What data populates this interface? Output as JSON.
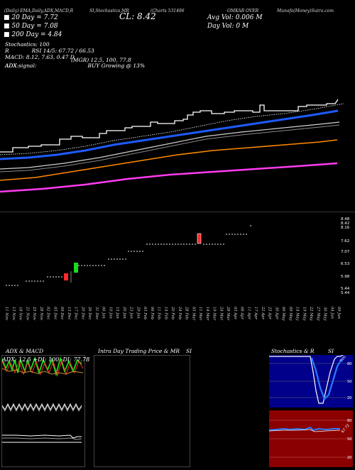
{
  "header": {
    "line1_left": "(Daily) EMA,Daily,ADX,MACD,R",
    "line1_mid": "SI,Stochastics,MR",
    "line1_right": "(Charts 531496",
    "line1_name": "OMKAR OVER",
    "line1_far": "Munafa(Money)Sutra.com"
  },
  "legend": {
    "ema20": "20 Day = 7.72",
    "ema50": "50 Day = 7.08",
    "ema200": "200 Day = 4.84",
    "stoch": "Stochastics: 100",
    "rsi": "RSI 14/5: 67.72 / 66.53",
    "macd": "MACD: 8.12, 7.63, 0.47 D",
    "adx": "ADX:",
    "adx_val": "(MGR) 12.5, 100, 77.8",
    "adx_signal": "ADX  signal:",
    "adx_signal_val": "BUY Growing @ 13%"
  },
  "stats": {
    "close": "CL: 8.42",
    "avg_vol": "Avg Vol: 0.006  M",
    "day_vol": "Day Vol: 0   M"
  },
  "colors": {
    "ema20": "#1e5bff",
    "ema200": "#ff8a00",
    "pink": "#ff3cf0",
    "up": "#16e016",
    "down": "#ff2a2a",
    "rsi_bg": "#8b0000",
    "stoch_bg": "#00008b"
  },
  "price_axis": {
    "labels": [
      "8.48",
      "8.42",
      "8.16",
      "7.62",
      "7.07",
      "6.53",
      "5.98",
      "5.44",
      "5.44"
    ]
  },
  "dates": [
    "11 Nov",
    "13 Nov",
    "18 Nov",
    "21 Nov",
    "25 Nov",
    "28 Nov",
    "02 Dec",
    "05 Dec",
    "09 Dec",
    "13 Dec",
    "17 Dec",
    "20 Dec",
    "26 Dec",
    "31 Dec",
    "06 Jan",
    "10 Jan",
    "15 Jan",
    "20 Jan",
    "23 Jan",
    "29 Jan",
    "03 Feb",
    "06 Feb",
    "11 Feb",
    "14 Feb",
    "20 Feb",
    "24 Feb",
    "28 Feb",
    "05 Mar",
    "11 Mar",
    "14 Mar",
    "19 Mar",
    "24 Mar",
    "28 Mar",
    "03 Apr",
    "08 Apr",
    "11 Apr",
    "17 Apr",
    "22 Apr",
    "25 Apr",
    "30 Apr",
    "06 May",
    "09 May",
    "14 May",
    "19 May",
    "22 May",
    "27 May",
    "30 May",
    "04 Jun",
    "09 Jun"
  ],
  "panels": {
    "adx_title": "ADX  & MACD",
    "adx_values": "ADX: 12.5  +DI: 100  -DI: 77.78",
    "intraday_title": "Intra  Day Trading Price  & MR",
    "intraday_title2": "SI",
    "stoch_title": "Stochastics & R",
    "stoch_title2": "SI",
    "stoch_value": "100",
    "stoch_axis": [
      "80",
      "50",
      "20"
    ],
    "rsi_axis": [
      "80",
      "50",
      "20"
    ],
    "rsi_value": "67.72"
  }
}
